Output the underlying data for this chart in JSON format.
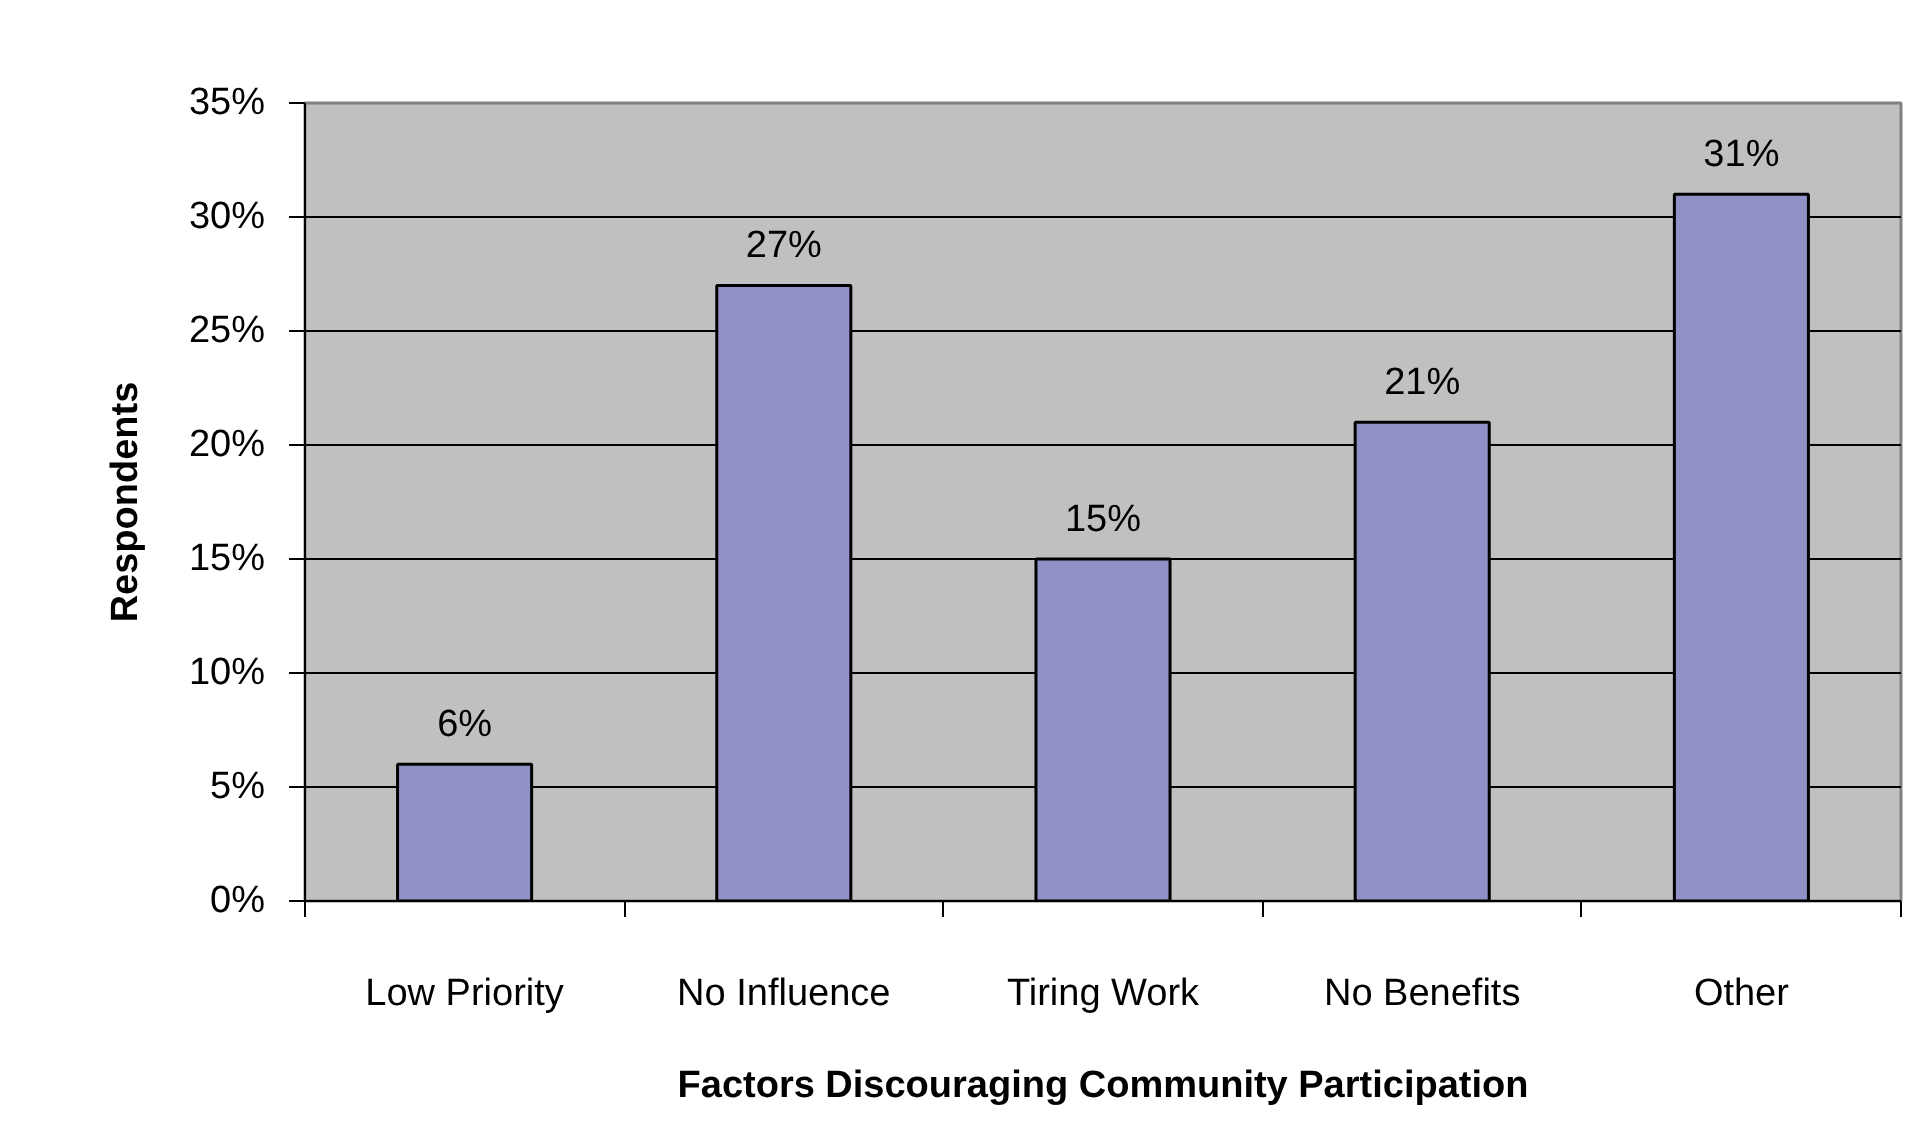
{
  "chart_data": {
    "type": "bar",
    "xlabel": "Factors Discouraging Community Participation",
    "ylabel": "Respondents",
    "categories": [
      "Low Priority",
      "No Influence",
      "Tiring Work",
      "No Benefits",
      "Other"
    ],
    "values": [
      6,
      27,
      15,
      21,
      31
    ],
    "value_labels": [
      "6%",
      "27%",
      "15%",
      "21%",
      "31%"
    ],
    "color": "#9191c8",
    "ylim": [
      0,
      35
    ],
    "yticks": [
      {
        "value": 0,
        "label": "0%"
      },
      {
        "value": 5,
        "label": "5%"
      },
      {
        "value": 10,
        "label": "10%"
      },
      {
        "value": 15,
        "label": "15%"
      },
      {
        "value": 20,
        "label": "20%"
      },
      {
        "value": 25,
        "label": "25%"
      },
      {
        "value": 30,
        "label": "30%"
      },
      {
        "value": 35,
        "label": "35%"
      }
    ],
    "grid": "y"
  }
}
